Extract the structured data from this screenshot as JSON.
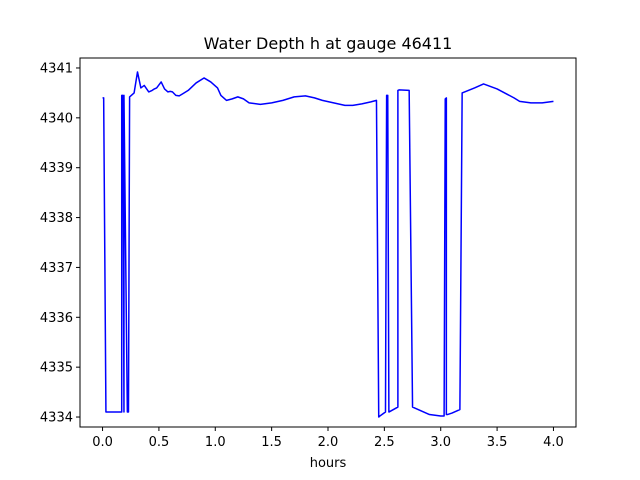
{
  "chart_data": {
    "type": "line",
    "title": "Water Depth h at gauge 46411",
    "xlabel": "hours",
    "ylabel": "",
    "xlim": [
      -0.2,
      4.2
    ],
    "ylim": [
      4333.8,
      4341.2
    ],
    "xticks": [
      0.0,
      0.5,
      1.0,
      1.5,
      2.0,
      2.5,
      3.0,
      3.5,
      4.0
    ],
    "xtick_labels": [
      "0.0",
      "0.5",
      "1.0",
      "1.5",
      "2.0",
      "2.5",
      "3.0",
      "3.5",
      "4.0"
    ],
    "yticks": [
      4334,
      4335,
      4336,
      4337,
      4338,
      4339,
      4340,
      4341
    ],
    "ytick_labels": [
      "4334",
      "4335",
      "4336",
      "4337",
      "4338",
      "4339",
      "4340",
      "4341"
    ],
    "grid": false,
    "legend": false,
    "series": [
      {
        "color": "#0000ff",
        "x": [
          0.0,
          0.01,
          0.03,
          0.17,
          0.17,
          0.18,
          0.19,
          0.19,
          0.22,
          0.23,
          0.24,
          0.28,
          0.31,
          0.34,
          0.37,
          0.41,
          0.44,
          0.46,
          0.48,
          0.52,
          0.55,
          0.58,
          0.6,
          0.62,
          0.65,
          0.68,
          0.71,
          0.76,
          0.83,
          0.9,
          0.96,
          1.02,
          1.05,
          1.1,
          1.15,
          1.2,
          1.25,
          1.3,
          1.4,
          1.5,
          1.6,
          1.7,
          1.8,
          1.88,
          1.95,
          2.05,
          2.15,
          2.22,
          2.3,
          2.38,
          2.43,
          2.45,
          2.46,
          2.51,
          2.52,
          2.53,
          2.54,
          2.62,
          2.62,
          2.63,
          2.72,
          2.75,
          2.9,
          3.0,
          3.03,
          3.04,
          3.05,
          3.05,
          3.06,
          3.1,
          3.17,
          3.19,
          3.3,
          3.38,
          3.5,
          3.65,
          3.7,
          3.8,
          3.9,
          4.0
        ],
        "y": [
          4340.4,
          4340.4,
          4334.1,
          4334.1,
          4340.45,
          4340.45,
          4334.1,
          4340.45,
          4334.1,
          4334.1,
          4340.42,
          4340.5,
          4340.92,
          4340.6,
          4340.65,
          4340.52,
          4340.55,
          4340.58,
          4340.6,
          4340.72,
          4340.58,
          4340.52,
          4340.53,
          4340.52,
          4340.45,
          4340.44,
          4340.48,
          4340.55,
          4340.7,
          4340.8,
          4340.72,
          4340.6,
          4340.45,
          4340.35,
          4340.38,
          4340.42,
          4340.38,
          4340.3,
          4340.27,
          4340.3,
          4340.35,
          4340.42,
          4340.44,
          4340.4,
          4340.35,
          4340.3,
          4340.25,
          4340.25,
          4340.28,
          4340.32,
          4340.35,
          4334.0,
          4334.02,
          4334.1,
          4340.45,
          4340.45,
          4334.1,
          4334.2,
          4340.55,
          4340.56,
          4340.55,
          4334.2,
          4334.05,
          4334.02,
          4334.02,
          4340.38,
          4340.4,
          4334.05,
          4334.05,
          4334.08,
          4334.15,
          4340.5,
          4340.6,
          4340.68,
          4340.58,
          4340.4,
          4340.33,
          4340.3,
          4340.3,
          4340.33
        ]
      }
    ]
  }
}
